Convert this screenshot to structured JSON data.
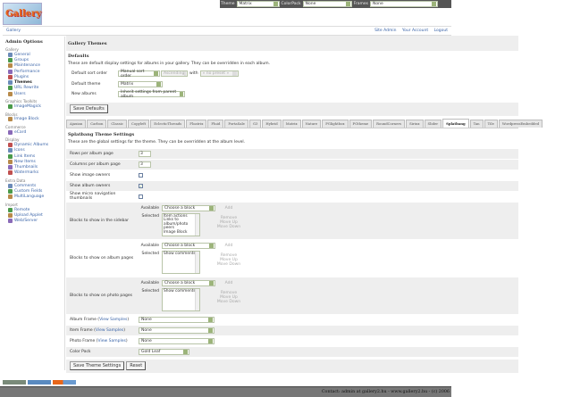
{
  "topbar": {
    "theme_label": "Theme",
    "theme_value": "Matrix",
    "colorpack_label": "ColorPack",
    "colorpack_value": "None",
    "frames_label": "Frames",
    "frames_value": "None"
  },
  "logo": {
    "text": "Gallery"
  },
  "breadcrumb": {
    "root": "Gallery",
    "links": [
      "Site Admin",
      "Your Account",
      "Logout"
    ]
  },
  "sidebar": {
    "title": "Admin Options",
    "groups": [
      {
        "label": "Gallery",
        "items": [
          "General",
          "Groups",
          "Maintenance",
          "Performance",
          "Plugins",
          "Themes",
          "URL Rewrite",
          "Users"
        ]
      },
      {
        "label": "Graphics Toolkits",
        "items": [
          "ImageMagick"
        ]
      },
      {
        "label": "Blocks",
        "items": [
          "Image Block"
        ]
      },
      {
        "label": "Commerce",
        "items": [
          "eCard"
        ]
      },
      {
        "label": "Display",
        "items": [
          "Dynamic Albums",
          "Icons",
          "Link Items",
          "New Items",
          "Thumbnails",
          "Watermarks"
        ]
      },
      {
        "label": "Extra Data",
        "items": [
          "Comments",
          "Custom Fields",
          "MultiLanguage"
        ]
      },
      {
        "label": "Import",
        "items": [
          "Remote",
          "Upload Applet",
          "Web/Server"
        ]
      }
    ],
    "active": "Themes"
  },
  "main": {
    "title": "Gallery Themes",
    "defaults": {
      "heading": "Defaults",
      "description": "These are default display settings for albums in your gallery. They can be overridden in each album.",
      "sort_label": "Default sort order",
      "sort_value": "Manual sort order",
      "sort_dir": "Ascending",
      "with_label": "with",
      "preset": "« no preset »",
      "theme_label": "Default theme",
      "theme_value": "Matrix",
      "new_label": "New albums",
      "new_value": "Inherit settings from parent album",
      "save": "Save Defaults"
    },
    "tabs": [
      "Ajaxian",
      "Carbon",
      "Classic",
      "Copyleft",
      "EclecticThreads",
      "Floatrix",
      "Fluid",
      "PortaSale",
      "G3",
      "Hybrid",
      "Matrix",
      "Nature",
      "PGlightbox",
      "PGtheme",
      "RoundCorners",
      "Siriux",
      "Slider",
      "Splatbang",
      "Tan",
      "Tile",
      "WordpressEmbedded"
    ],
    "active_tab": "Splatbang",
    "theme_settings": {
      "heading": "Splatbang Theme Settings",
      "description": "These are the global settings for the theme. They can be overridden at the album level.",
      "rows_label": "Rows per album page",
      "rows_value": "3",
      "cols_label": "Columns per album page",
      "cols_value": "3",
      "image_owners_label": "Show image owners",
      "image_owners": false,
      "album_owners_label": "Show album owners",
      "album_owners": true,
      "micro_label": "Show micro navigation thumbnails",
      "micro": false,
      "block_sets": [
        {
          "label": "Blocks to show in the sidebar",
          "selected": [
            "Item actions",
            "Links to album/photo peers",
            "Image Block"
          ]
        },
        {
          "label": "Blocks to show on album pages",
          "selected": [
            "Show comments"
          ]
        },
        {
          "label": "Blocks to show on photo pages",
          "selected": [
            "Show comments"
          ]
        }
      ],
      "available_label": "Available",
      "selected_label": "Selected",
      "choose": "Choose a block",
      "add": "Add",
      "remove": "Remove",
      "move_up": "Move Up",
      "move_down": "Move Down",
      "album_frame_label": "Album Frame",
      "item_frame_label": "Item Frame",
      "photo_frame_label": "Photo Frame",
      "view_samples": "View Samples",
      "album_frame": "None",
      "item_frame": "None",
      "photo_frame": "None",
      "color_pack_label": "Color Pack",
      "color_pack": "Gold Leaf",
      "save": "Save Theme Settings",
      "reset": "Reset"
    }
  },
  "footer": {
    "text": "Contact: admin at gallery2.hu - www.gallery2.hu - (c) 2006"
  }
}
